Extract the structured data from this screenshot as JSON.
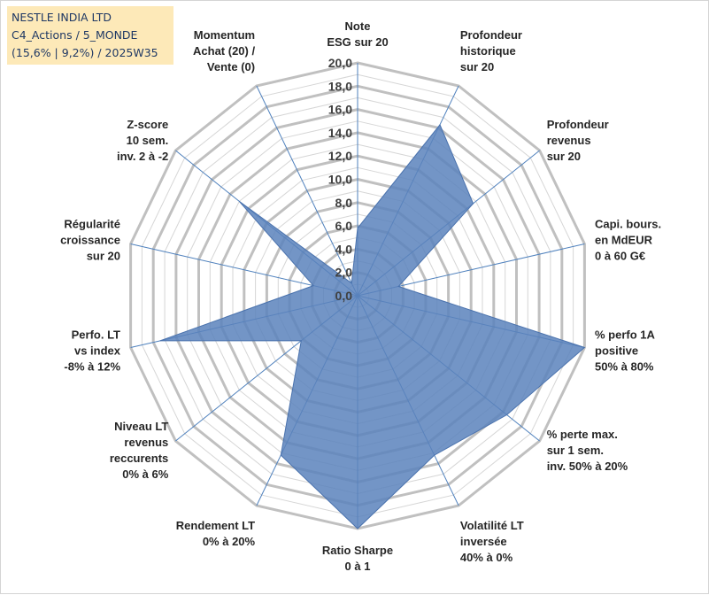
{
  "title": {
    "line1": "NESTLE INDIA LTD",
    "line2": "C4_Actions / 5_MONDE",
    "line3": "(15,6% | 9,2%) / 2025W35"
  },
  "chart_data": {
    "type": "radar",
    "axis_ticks": [
      "0,0",
      "2,0",
      "4,0",
      "6,0",
      "8,0",
      "10,0",
      "12,0",
      "14,0",
      "16,0",
      "18,0",
      "20,0"
    ],
    "rmin": 0,
    "rmax": 20,
    "grid": true,
    "categories": [
      [
        "Note",
        "ESG sur 20"
      ],
      [
        "Profondeur",
        "historique",
        "sur 20"
      ],
      [
        "Profondeur",
        "revenus",
        "sur 20"
      ],
      [
        "Capi. bours.",
        "en MdEUR",
        "0 à 60 G€"
      ],
      [
        "% perfo 1A",
        "positive",
        "50% à 80%"
      ],
      [
        "% perte max.",
        "sur 1 sem.",
        "inv. 50% à 20%"
      ],
      [
        "Volatilité LT",
        "inversée",
        "40% à 0%"
      ],
      [
        "Ratio Sharpe",
        "0 à 1"
      ],
      [
        "Rendement LT",
        "0% à 20%"
      ],
      [
        "Niveau LT",
        "revenus",
        "reccurents",
        "0% à 6%"
      ],
      [
        "Perfo. LT",
        "vs index",
        "-8% à 12%"
      ],
      [
        "Régularité",
        "croissance",
        "sur 20"
      ],
      [
        "Z-score",
        "10 sem.",
        "inv. 2 à -2"
      ],
      [
        "Momentum",
        "Achat (20) /",
        "Vente (0)"
      ]
    ],
    "series": [
      {
        "values": [
          5.8,
          16.3,
          12.7,
          3.6,
          20.0,
          16.4,
          15.2,
          20.0,
          15.2,
          6.2,
          17.4,
          3.9,
          13.0,
          1.2
        ]
      }
    ],
    "colors": {
      "series_fill": "#5a82bc",
      "spokes": "#4f81bd",
      "grid": "#c8c8c8"
    }
  }
}
